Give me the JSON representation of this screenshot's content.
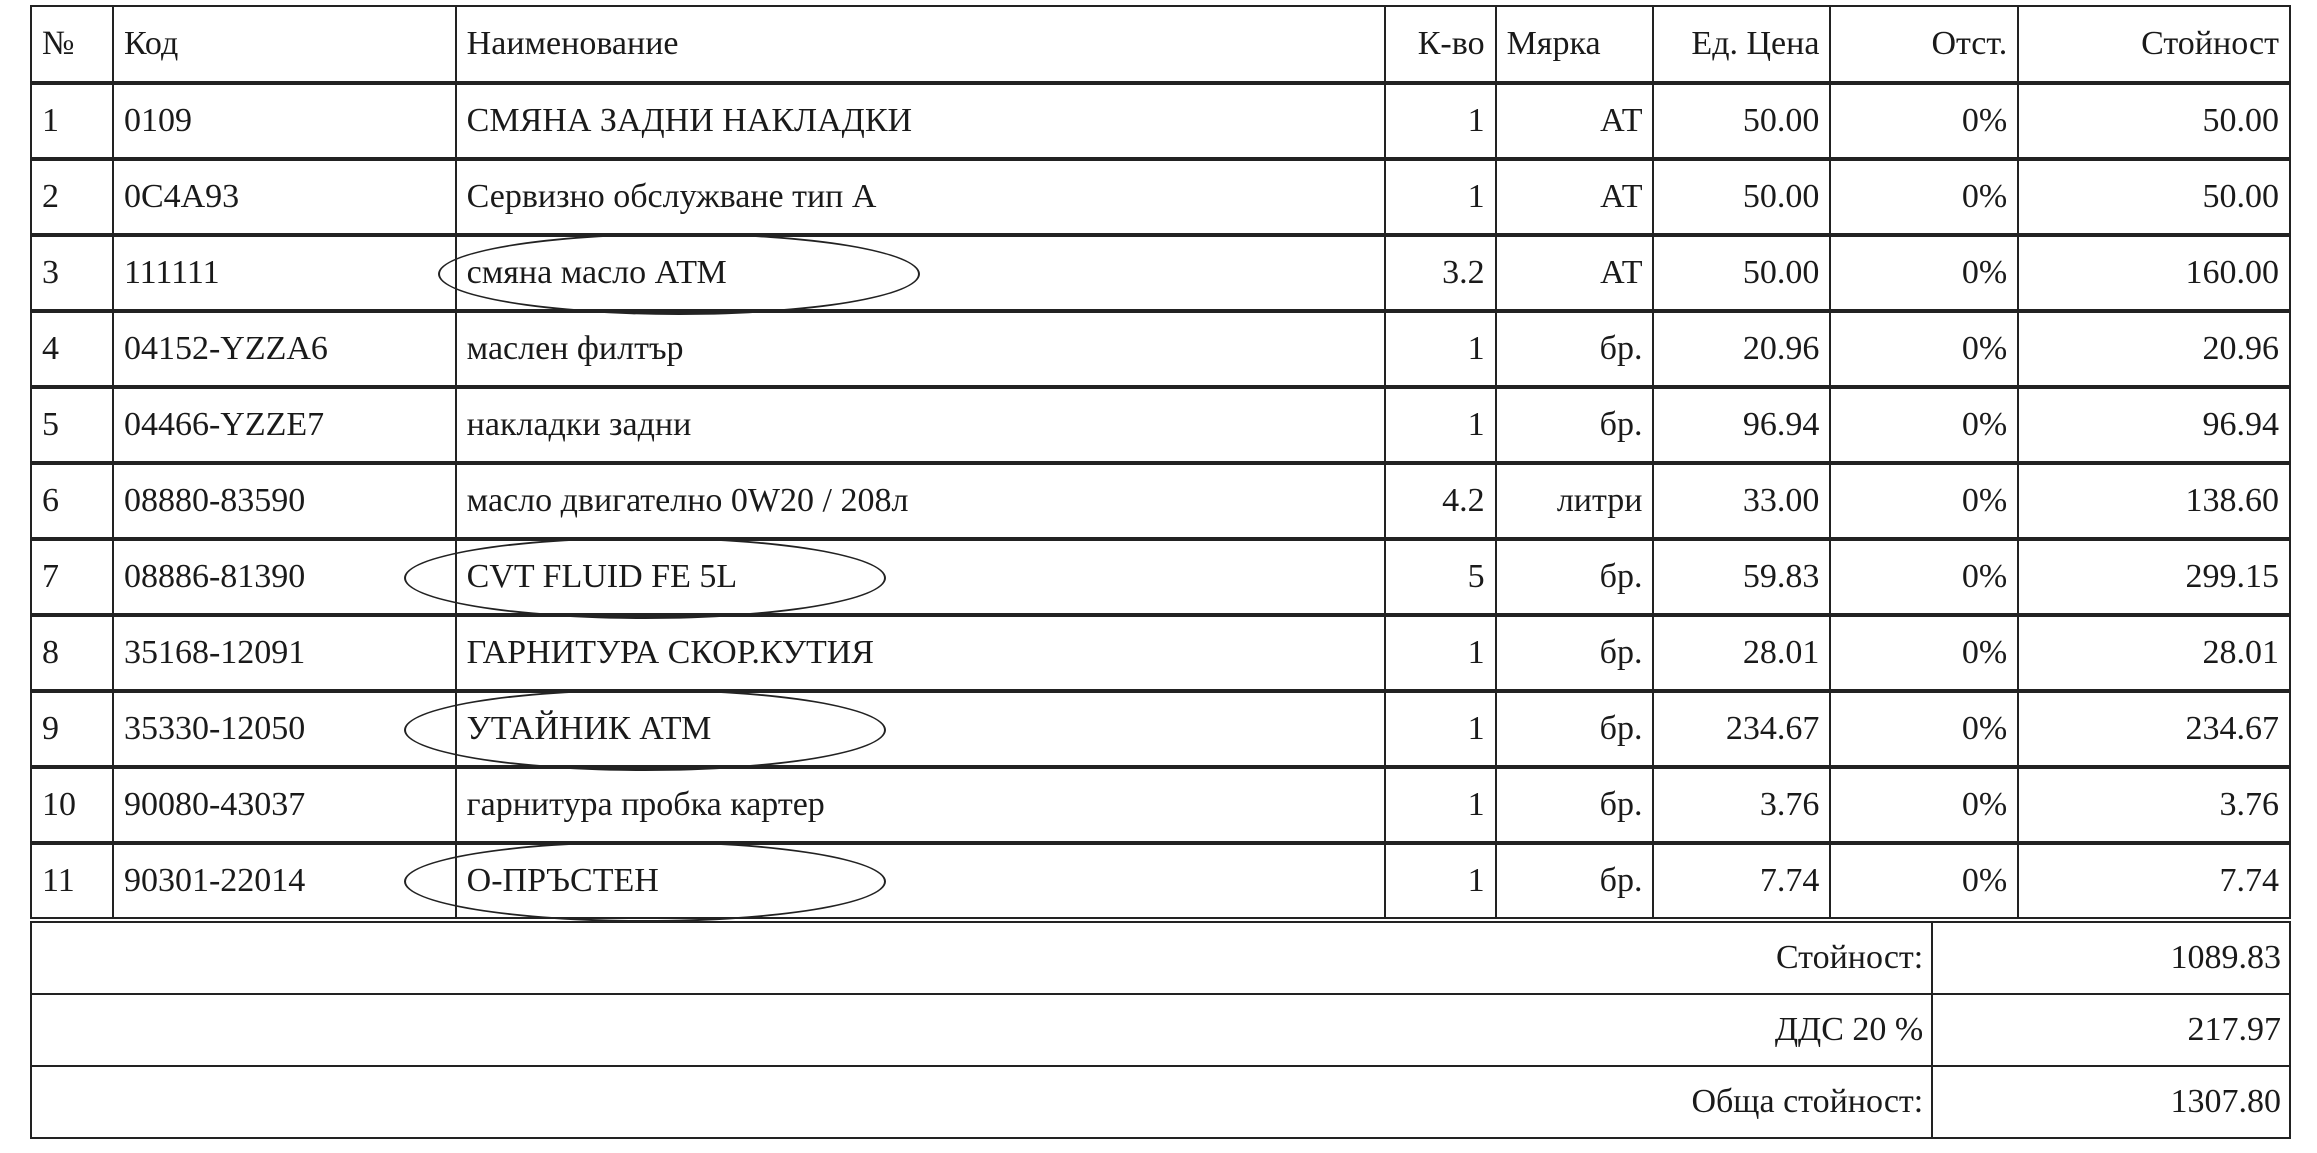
{
  "headers": [
    "№",
    "Код",
    "Наименование",
    "К-во",
    "Мярка",
    "Ед. Цена",
    "Отст.",
    "Стойност"
  ],
  "rows": [
    {
      "no": "1",
      "code": "0109",
      "name": "СМЯНА ЗАДНИ НАКЛАДКИ",
      "qty": "1",
      "unit": "АТ",
      "price": "50.00",
      "discount": "0%",
      "total": "50.00",
      "circled": false
    },
    {
      "no": "2",
      "code": "0C4A93",
      "name": "Сервизно обслужване тип А",
      "qty": "1",
      "unit": "АТ",
      "price": "50.00",
      "discount": "0%",
      "total": "50.00",
      "circled": false
    },
    {
      "no": "3",
      "code": "111111",
      "name": "смяна масло АТМ",
      "qty": "3.2",
      "unit": "АТ",
      "price": "50.00",
      "discount": "0%",
      "total": "160.00",
      "circled": true
    },
    {
      "no": "4",
      "code": "04152-YZZA6",
      "name": "маслен филтър",
      "qty": "1",
      "unit": "бр.",
      "price": "20.96",
      "discount": "0%",
      "total": "20.96",
      "circled": false
    },
    {
      "no": "5",
      "code": "04466-YZZE7",
      "name": "накладки задни",
      "qty": "1",
      "unit": "бр.",
      "price": "96.94",
      "discount": "0%",
      "total": "96.94",
      "circled": false
    },
    {
      "no": "6",
      "code": "08880-83590",
      "name": "масло двигателно 0W20 / 208л",
      "qty": "4.2",
      "unit": "литри",
      "price": "33.00",
      "discount": "0%",
      "total": "138.60",
      "circled": false
    },
    {
      "no": "7",
      "code": "08886-81390",
      "name": "CVT FLUID FE 5L",
      "qty": "5",
      "unit": "бр.",
      "price": "59.83",
      "discount": "0%",
      "total": "299.15",
      "circled": true
    },
    {
      "no": "8",
      "code": "35168-12091",
      "name": "ГАРНИТУРА СКОР.КУТИЯ",
      "qty": "1",
      "unit": "бр.",
      "price": "28.01",
      "discount": "0%",
      "total": "28.01",
      "circled": false
    },
    {
      "no": "9",
      "code": "35330-12050",
      "name": "УТАЙНИК АТМ",
      "qty": "1",
      "unit": "бр.",
      "price": "234.67",
      "discount": "0%",
      "total": "234.67",
      "circled": true
    },
    {
      "no": "10",
      "code": "90080-43037",
      "name": "гарнитура пробка картер",
      "qty": "1",
      "unit": "бр.",
      "price": "3.76",
      "discount": "0%",
      "total": "3.76",
      "circled": false
    },
    {
      "no": "11",
      "code": "90301-22014",
      "name": "О-ПРЪСТЕН",
      "qty": "1",
      "unit": "бр.",
      "price": "7.74",
      "discount": "0%",
      "total": "7.74",
      "circled": true
    }
  ],
  "totals": [
    {
      "label": "Стойност:",
      "value": "1089.83"
    },
    {
      "label": "ДДС 20 %",
      "value": "217.97"
    },
    {
      "label": "Обща стойност:",
      "value": "1307.80"
    }
  ]
}
